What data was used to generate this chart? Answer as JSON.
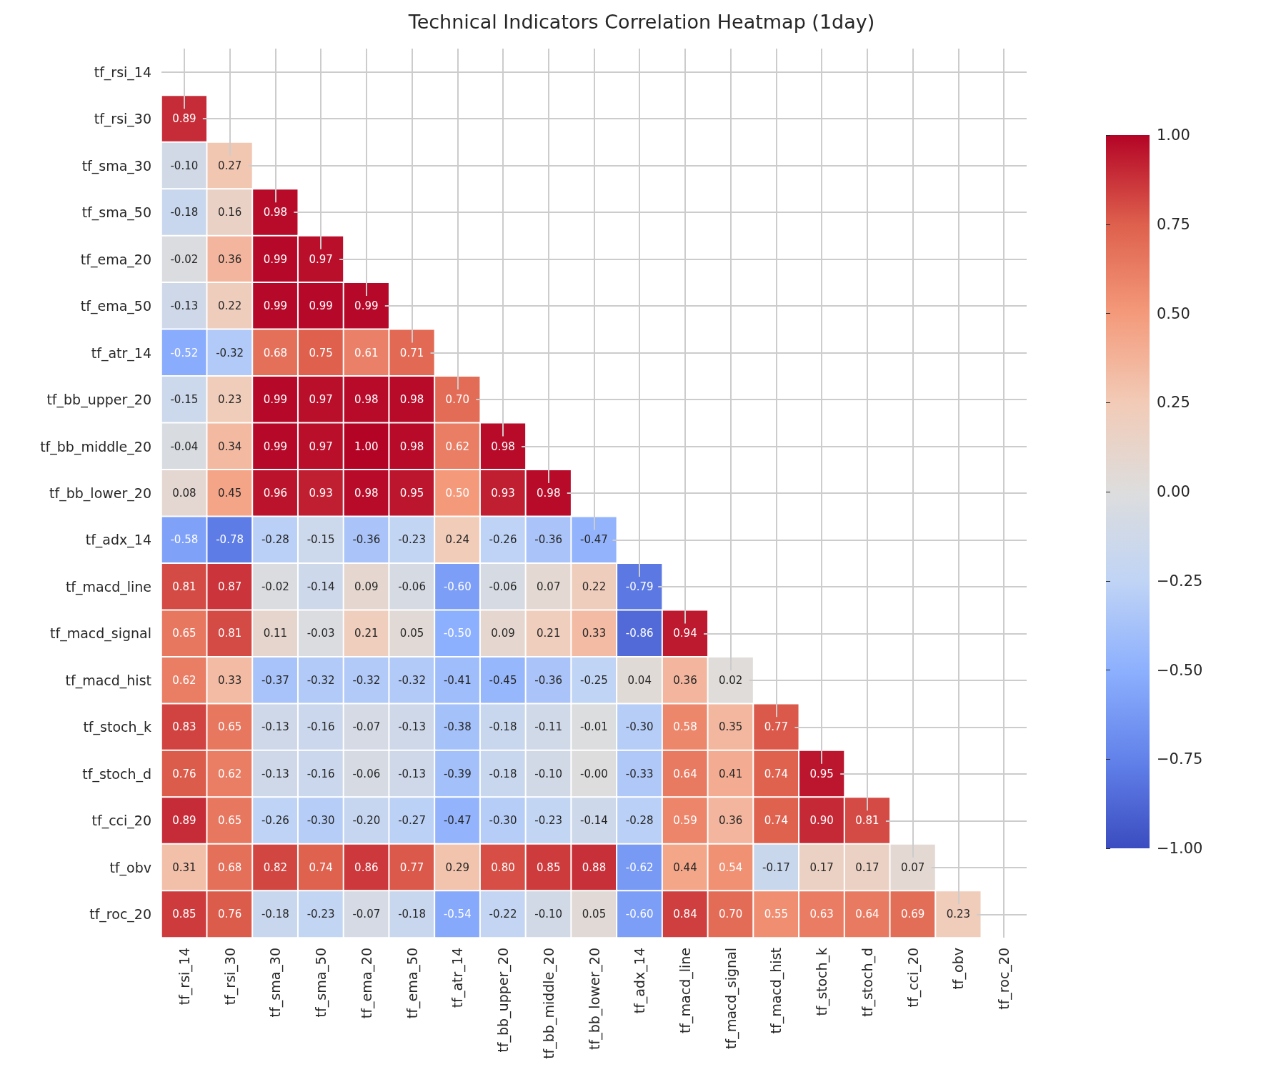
{
  "chart_data": {
    "type": "heatmap",
    "title": "Technical Indicators Correlation Heatmap (1day)",
    "categories": [
      "tf_rsi_14",
      "tf_rsi_30",
      "tf_sma_30",
      "tf_sma_50",
      "tf_ema_20",
      "tf_ema_50",
      "tf_atr_14",
      "tf_bb_upper_20",
      "tf_bb_middle_20",
      "tf_bb_lower_20",
      "tf_adx_14",
      "tf_macd_line",
      "tf_macd_signal",
      "tf_macd_hist",
      "tf_stoch_k",
      "tf_stoch_d",
      "tf_cci_20",
      "tf_obv",
      "tf_roc_20"
    ],
    "y_categories": [
      "tf_rsi_14",
      "tf_rsi_30",
      "tf_sma_30",
      "tf_sma_50",
      "tf_ema_20",
      "tf_ema_50",
      "tf_atr_14",
      "tf_bb_upper_20",
      "tf_bb_middle_20",
      "tf_bb_lower_20",
      "tf_adx_14",
      "tf_macd_line",
      "tf_macd_signal",
      "tf_macd_hist",
      "tf_stoch_k",
      "tf_stoch_d",
      "tf_cci_20",
      "tf_obv",
      "tf_roc_20"
    ],
    "cells": [
      [
        null,
        null,
        null,
        null,
        null,
        null,
        null,
        null,
        null,
        null,
        null,
        null,
        null,
        null,
        null,
        null,
        null,
        null,
        null
      ],
      [
        0.89,
        null,
        null,
        null,
        null,
        null,
        null,
        null,
        null,
        null,
        null,
        null,
        null,
        null,
        null,
        null,
        null,
        null,
        null
      ],
      [
        -0.1,
        0.27,
        null,
        null,
        null,
        null,
        null,
        null,
        null,
        null,
        null,
        null,
        null,
        null,
        null,
        null,
        null,
        null,
        null
      ],
      [
        -0.18,
        0.16,
        0.98,
        null,
        null,
        null,
        null,
        null,
        null,
        null,
        null,
        null,
        null,
        null,
        null,
        null,
        null,
        null,
        null
      ],
      [
        -0.02,
        0.36,
        0.99,
        0.97,
        null,
        null,
        null,
        null,
        null,
        null,
        null,
        null,
        null,
        null,
        null,
        null,
        null,
        null,
        null
      ],
      [
        -0.13,
        0.22,
        0.99,
        0.99,
        0.99,
        null,
        null,
        null,
        null,
        null,
        null,
        null,
        null,
        null,
        null,
        null,
        null,
        null,
        null
      ],
      [
        -0.52,
        -0.32,
        0.68,
        0.75,
        0.61,
        0.71,
        null,
        null,
        null,
        null,
        null,
        null,
        null,
        null,
        null,
        null,
        null,
        null,
        null
      ],
      [
        -0.15,
        0.23,
        0.99,
        0.97,
        0.98,
        0.98,
        0.7,
        null,
        null,
        null,
        null,
        null,
        null,
        null,
        null,
        null,
        null,
        null,
        null
      ],
      [
        -0.04,
        0.34,
        0.99,
        0.97,
        1.0,
        0.98,
        0.62,
        0.98,
        null,
        null,
        null,
        null,
        null,
        null,
        null,
        null,
        null,
        null,
        null
      ],
      [
        0.08,
        0.45,
        0.96,
        0.93,
        0.98,
        0.95,
        0.5,
        0.93,
        0.98,
        null,
        null,
        null,
        null,
        null,
        null,
        null,
        null,
        null,
        null
      ],
      [
        -0.58,
        -0.78,
        -0.28,
        -0.15,
        -0.36,
        -0.23,
        0.24,
        -0.26,
        -0.36,
        -0.47,
        null,
        null,
        null,
        null,
        null,
        null,
        null,
        null,
        null
      ],
      [
        0.81,
        0.87,
        -0.02,
        -0.14,
        0.09,
        -0.06,
        -0.6,
        -0.06,
        0.07,
        0.22,
        -0.79,
        null,
        null,
        null,
        null,
        null,
        null,
        null,
        null
      ],
      [
        0.65,
        0.81,
        0.11,
        -0.03,
        0.21,
        0.05,
        -0.5,
        0.09,
        0.21,
        0.33,
        -0.86,
        0.94,
        null,
        null,
        null,
        null,
        null,
        null,
        null
      ],
      [
        0.62,
        0.33,
        -0.37,
        -0.32,
        -0.32,
        -0.32,
        -0.41,
        -0.45,
        -0.36,
        -0.25,
        0.04,
        0.36,
        0.02,
        null,
        null,
        null,
        null,
        null,
        null
      ],
      [
        0.83,
        0.65,
        -0.13,
        -0.16,
        -0.07,
        -0.13,
        -0.38,
        -0.18,
        -0.11,
        -0.01,
        -0.3,
        0.58,
        0.35,
        0.77,
        null,
        null,
        null,
        null,
        null
      ],
      [
        0.76,
        0.62,
        -0.13,
        -0.16,
        -0.06,
        -0.13,
        -0.39,
        -0.18,
        -0.1,
        -0.0,
        -0.33,
        0.64,
        0.41,
        0.74,
        0.95,
        null,
        null,
        null,
        null
      ],
      [
        0.89,
        0.65,
        -0.26,
        -0.3,
        -0.2,
        -0.27,
        -0.47,
        -0.3,
        -0.23,
        -0.14,
        -0.28,
        0.59,
        0.36,
        0.74,
        0.9,
        0.81,
        null,
        null,
        null
      ],
      [
        0.31,
        0.68,
        0.82,
        0.74,
        0.86,
        0.77,
        0.29,
        0.8,
        0.85,
        0.88,
        -0.62,
        0.44,
        0.54,
        -0.17,
        0.17,
        0.17,
        0.07,
        null,
        null
      ],
      [
        0.85,
        0.76,
        -0.18,
        -0.23,
        -0.07,
        -0.18,
        -0.54,
        -0.22,
        -0.1,
        0.05,
        -0.6,
        0.84,
        0.7,
        0.55,
        0.63,
        0.64,
        0.69,
        0.23,
        null
      ]
    ],
    "cell_labels": [
      [
        null,
        null,
        null,
        null,
        null,
        null,
        null,
        null,
        null,
        null,
        null,
        null,
        null,
        null,
        null,
        null,
        null,
        null,
        null
      ],
      [
        "0.89",
        null,
        null,
        null,
        null,
        null,
        null,
        null,
        null,
        null,
        null,
        null,
        null,
        null,
        null,
        null,
        null,
        null,
        null
      ],
      [
        "-0.10",
        "0.27",
        null,
        null,
        null,
        null,
        null,
        null,
        null,
        null,
        null,
        null,
        null,
        null,
        null,
        null,
        null,
        null,
        null
      ],
      [
        "-0.18",
        "0.16",
        "0.98",
        null,
        null,
        null,
        null,
        null,
        null,
        null,
        null,
        null,
        null,
        null,
        null,
        null,
        null,
        null,
        null
      ],
      [
        "-0.02",
        "0.36",
        "0.99",
        "0.97",
        null,
        null,
        null,
        null,
        null,
        null,
        null,
        null,
        null,
        null,
        null,
        null,
        null,
        null,
        null
      ],
      [
        "-0.13",
        "0.22",
        "0.99",
        "0.99",
        "0.99",
        null,
        null,
        null,
        null,
        null,
        null,
        null,
        null,
        null,
        null,
        null,
        null,
        null,
        null
      ],
      [
        "-0.52",
        "-0.32",
        "0.68",
        "0.75",
        "0.61",
        "0.71",
        null,
        null,
        null,
        null,
        null,
        null,
        null,
        null,
        null,
        null,
        null,
        null,
        null
      ],
      [
        "-0.15",
        "0.23",
        "0.99",
        "0.97",
        "0.98",
        "0.98",
        "0.70",
        null,
        null,
        null,
        null,
        null,
        null,
        null,
        null,
        null,
        null,
        null,
        null
      ],
      [
        "-0.04",
        "0.34",
        "0.99",
        "0.97",
        "1.00",
        "0.98",
        "0.62",
        "0.98",
        null,
        null,
        null,
        null,
        null,
        null,
        null,
        null,
        null,
        null,
        null
      ],
      [
        "0.08",
        "0.45",
        "0.96",
        "0.93",
        "0.98",
        "0.95",
        "0.50",
        "0.93",
        "0.98",
        null,
        null,
        null,
        null,
        null,
        null,
        null,
        null,
        null,
        null
      ],
      [
        "-0.58",
        "-0.78",
        "-0.28",
        "-0.15",
        "-0.36",
        "-0.23",
        "0.24",
        "-0.26",
        "-0.36",
        "-0.47",
        null,
        null,
        null,
        null,
        null,
        null,
        null,
        null,
        null
      ],
      [
        "0.81",
        "0.87",
        "-0.02",
        "-0.14",
        "0.09",
        "-0.06",
        "-0.60",
        "-0.06",
        "0.07",
        "0.22",
        "-0.79",
        null,
        null,
        null,
        null,
        null,
        null,
        null,
        null
      ],
      [
        "0.65",
        "0.81",
        "0.11",
        "-0.03",
        "0.21",
        "0.05",
        "-0.50",
        "0.09",
        "0.21",
        "0.33",
        "-0.86",
        "0.94",
        null,
        null,
        null,
        null,
        null,
        null,
        null
      ],
      [
        "0.62",
        "0.33",
        "-0.37",
        "-0.32",
        "-0.32",
        "-0.32",
        "-0.41",
        "-0.45",
        "-0.36",
        "-0.25",
        "0.04",
        "0.36",
        "0.02",
        null,
        null,
        null,
        null,
        null,
        null
      ],
      [
        "0.83",
        "0.65",
        "-0.13",
        "-0.16",
        "-0.07",
        "-0.13",
        "-0.38",
        "-0.18",
        "-0.11",
        "-0.01",
        "-0.30",
        "0.58",
        "0.35",
        "0.77",
        null,
        null,
        null,
        null,
        null
      ],
      [
        "0.76",
        "0.62",
        "-0.13",
        "-0.16",
        "-0.06",
        "-0.13",
        "-0.39",
        "-0.18",
        "-0.10",
        "-0.00",
        "-0.33",
        "0.64",
        "0.41",
        "0.74",
        "0.95",
        null,
        null,
        null,
        null
      ],
      [
        "0.89",
        "0.65",
        "-0.26",
        "-0.30",
        "-0.20",
        "-0.27",
        "-0.47",
        "-0.30",
        "-0.23",
        "-0.14",
        "-0.28",
        "0.59",
        "0.36",
        "0.74",
        "0.90",
        "0.81",
        null,
        null,
        null
      ],
      [
        "0.31",
        "0.68",
        "0.82",
        "0.74",
        "0.86",
        "0.77",
        "0.29",
        "0.80",
        "0.85",
        "0.88",
        "-0.62",
        "0.44",
        "0.54",
        "-0.17",
        "0.17",
        "0.17",
        "0.07",
        null,
        null
      ],
      [
        "0.85",
        "0.76",
        "-0.18",
        "-0.23",
        "-0.07",
        "-0.18",
        "-0.54",
        "-0.22",
        "-0.10",
        "0.05",
        "-0.60",
        "0.84",
        "0.70",
        "0.55",
        "0.63",
        "0.64",
        "0.69",
        "0.23",
        null
      ]
    ],
    "clim": [
      -1,
      1
    ],
    "cticks": [
      {
        "value": -1,
        "label": "−1.00"
      },
      {
        "value": -0.75,
        "label": "−0.75"
      },
      {
        "value": -0.5,
        "label": "−0.50"
      },
      {
        "value": -0.25,
        "label": "−0.25"
      },
      {
        "value": 0,
        "label": "0.00"
      },
      {
        "value": 0.25,
        "label": "0.25"
      },
      {
        "value": 0.5,
        "label": "0.50"
      },
      {
        "value": 0.75,
        "label": "0.75"
      },
      {
        "value": 1,
        "label": "1.00"
      }
    ],
    "data_labels": true,
    "grid": true
  }
}
